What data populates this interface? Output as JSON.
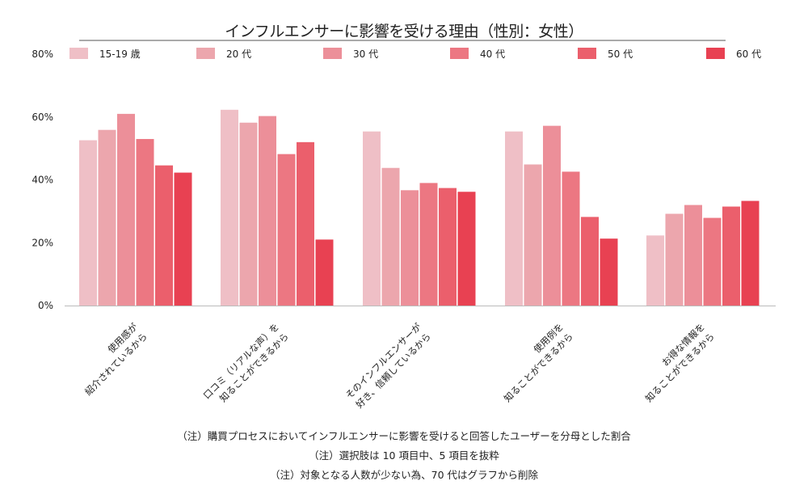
{
  "chart_data": {
    "type": "bar",
    "title": "インフルエンサーに影響を受ける理由（性別：女性）",
    "xlabel": "",
    "ylabel": "",
    "ylim": [
      0,
      80
    ],
    "yticks": [
      "0%",
      "20%",
      "40%",
      "60%",
      "80%"
    ],
    "ytick_values": [
      0,
      20,
      40,
      60,
      80
    ],
    "grid": false,
    "legend_position": "top",
    "categories": [
      [
        "使用感が",
        "紹介されているから"
      ],
      [
        "口コミ（リアルな声）を",
        "知ることができるから"
      ],
      [
        "そのインフルエンサーが",
        "好き、信頼しているから"
      ],
      [
        "使用例を",
        "知ることができるから"
      ],
      [
        "お得な情報を",
        "知ることができるから"
      ]
    ],
    "series": [
      {
        "name": "15-19 歳",
        "color": "#efbfc6",
        "values": [
          52.6,
          62.3,
          55.4,
          55.4,
          22.3
        ]
      },
      {
        "name": "20 代",
        "color": "#eca6ad",
        "values": [
          55.9,
          58.2,
          43.8,
          44.9,
          29.2
        ]
      },
      {
        "name": "30 代",
        "color": "#ec8f99",
        "values": [
          61.0,
          60.3,
          36.7,
          57.2,
          32.0
        ]
      },
      {
        "name": "40 代",
        "color": "#ec7782",
        "values": [
          53.0,
          48.2,
          39.0,
          42.6,
          27.9
        ]
      },
      {
        "name": "50 代",
        "color": "#eb5f6c",
        "values": [
          44.6,
          52.0,
          37.4,
          28.2,
          31.5
        ]
      },
      {
        "name": "60 代",
        "color": "#e84152",
        "values": [
          42.3,
          21.0,
          36.2,
          21.3,
          33.3
        ]
      }
    ]
  },
  "notes": [
    "（注）購買プロセスにおいてインフルエンサーに影響を受けると回答したユーザーを分母とした割合",
    "（注）選択肢は 10 項目中、5 項目を抜粋",
    "（注）対象となる人数が少ない為、70 代はグラフから削除"
  ]
}
